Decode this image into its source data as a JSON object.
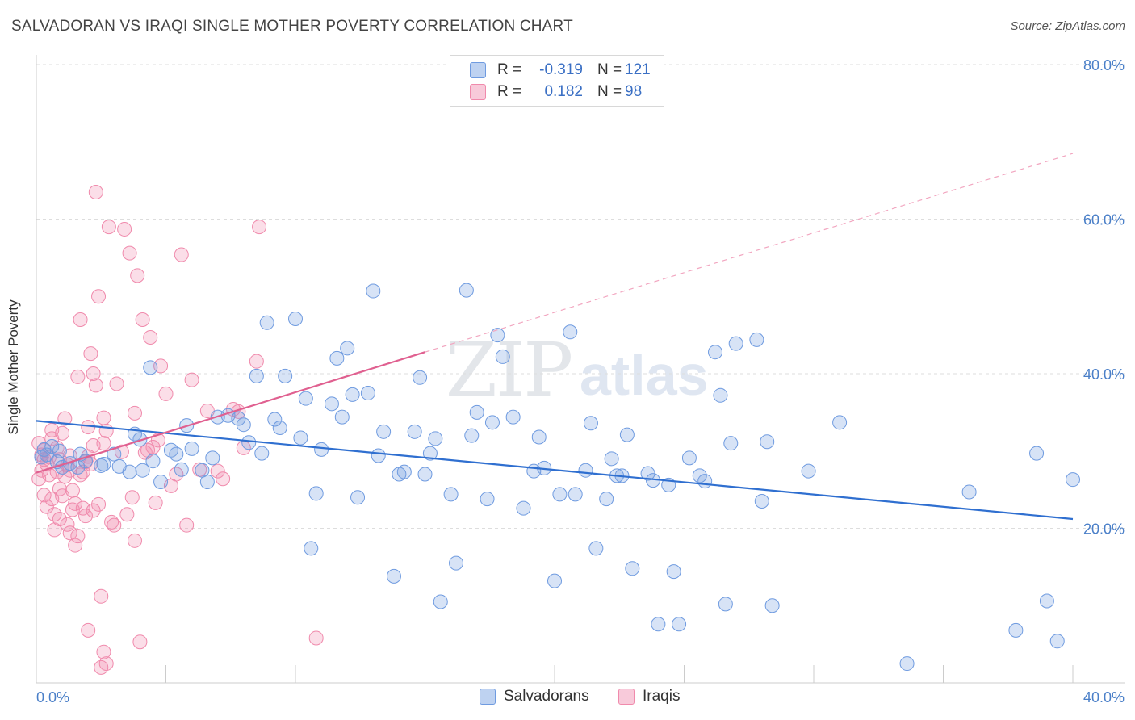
{
  "header": {
    "title": "SALVADORAN VS IRAQI SINGLE MOTHER POVERTY CORRELATION CHART",
    "source": "Source: ZipAtlas.com"
  },
  "watermark": {
    "zip": "ZIP",
    "atlas": "atlas"
  },
  "legend": {
    "rows": [
      {
        "r_label": "R =",
        "r_value": "-0.319",
        "n_label": "N =",
        "n_value": "121",
        "color": "#6f9be0"
      },
      {
        "r_label": "R =",
        "r_value": "0.182",
        "n_label": "N =",
        "n_value": "98",
        "color": "#f08aac"
      }
    ]
  },
  "bottom_legend": [
    {
      "label": "Salvadorans",
      "color": "#6f9be0"
    },
    {
      "label": "Iraqis",
      "color": "#f08aac"
    }
  ],
  "chart_data": {
    "type": "scatter",
    "title": "SALVADORAN VS IRAQI SINGLE MOTHER POVERTY CORRELATION CHART",
    "xlabel": "",
    "ylabel": "Single Mother Poverty",
    "xlim": [
      0,
      40
    ],
    "ylim": [
      0,
      80
    ],
    "x_tick_labels": [
      "0.0%",
      "40.0%"
    ],
    "y_ticks": [
      20,
      40,
      60,
      80
    ],
    "y_tick_labels": [
      "20.0%",
      "40.0%",
      "60.0%",
      "80.0%"
    ],
    "grid": true,
    "legend_placement": "top-center",
    "colors": {
      "salvadorans": "#6f9be0",
      "iraqis": "#f08aac",
      "salvadorans_line": "#2f6fd0",
      "iraqis_line": "#e06090"
    },
    "series": [
      {
        "name": "Salvadorans",
        "trend": {
          "x": [
            0,
            40
          ],
          "y": [
            33.9,
            21.2
          ],
          "style": "solid"
        },
        "points": [
          [
            0.3,
            30.2
          ],
          [
            0.6,
            30.6
          ],
          [
            0.9,
            30.0
          ],
          [
            0.4,
            29.5
          ],
          [
            0.8,
            28.6
          ],
          [
            1.0,
            27.9
          ],
          [
            1.3,
            28.4
          ],
          [
            1.6,
            27.9
          ],
          [
            1.7,
            29.6
          ],
          [
            1.9,
            28.7
          ],
          [
            2.5,
            28.1
          ],
          [
            3.0,
            29.6
          ],
          [
            2.6,
            28.3
          ],
          [
            3.2,
            28.0
          ],
          [
            3.6,
            27.3
          ],
          [
            4.1,
            27.5
          ],
          [
            3.8,
            32.2
          ],
          [
            4.4,
            40.8
          ],
          [
            4.0,
            31.5
          ],
          [
            4.5,
            28.7
          ],
          [
            4.8,
            26.0
          ],
          [
            5.2,
            30.1
          ],
          [
            5.4,
            29.6
          ],
          [
            5.6,
            27.6
          ],
          [
            5.8,
            33.3
          ],
          [
            6.0,
            30.3
          ],
          [
            6.4,
            27.5
          ],
          [
            6.6,
            26.0
          ],
          [
            6.8,
            29.1
          ],
          [
            7.0,
            34.4
          ],
          [
            7.4,
            34.6
          ],
          [
            7.8,
            34.2
          ],
          [
            8.0,
            33.4
          ],
          [
            8.2,
            31.1
          ],
          [
            8.5,
            39.7
          ],
          [
            8.7,
            29.7
          ],
          [
            8.9,
            46.6
          ],
          [
            9.2,
            34.1
          ],
          [
            9.4,
            33.0
          ],
          [
            9.6,
            39.7
          ],
          [
            10.0,
            47.1
          ],
          [
            10.2,
            31.7
          ],
          [
            10.4,
            36.8
          ],
          [
            10.8,
            24.5
          ],
          [
            10.6,
            17.4
          ],
          [
            11.0,
            30.2
          ],
          [
            11.4,
            36.1
          ],
          [
            11.8,
            34.4
          ],
          [
            11.6,
            42.0
          ],
          [
            12.0,
            43.3
          ],
          [
            12.2,
            37.3
          ],
          [
            12.4,
            24.0
          ],
          [
            12.8,
            37.5
          ],
          [
            13.2,
            29.4
          ],
          [
            13.4,
            32.5
          ],
          [
            13.0,
            50.7
          ],
          [
            13.8,
            13.8
          ],
          [
            14.0,
            27.0
          ],
          [
            14.2,
            27.3
          ],
          [
            14.6,
            32.5
          ],
          [
            14.8,
            39.5
          ],
          [
            15.0,
            27.0
          ],
          [
            15.2,
            29.7
          ],
          [
            15.4,
            31.6
          ],
          [
            15.6,
            10.5
          ],
          [
            16.0,
            24.4
          ],
          [
            16.2,
            15.5
          ],
          [
            16.6,
            50.8
          ],
          [
            16.8,
            32.0
          ],
          [
            17.0,
            35.0
          ],
          [
            17.4,
            23.8
          ],
          [
            17.6,
            33.7
          ],
          [
            17.8,
            45.0
          ],
          [
            18.0,
            42.2
          ],
          [
            18.4,
            34.4
          ],
          [
            18.8,
            22.6
          ],
          [
            19.2,
            27.4
          ],
          [
            19.4,
            31.8
          ],
          [
            19.6,
            27.8
          ],
          [
            20.0,
            13.2
          ],
          [
            20.2,
            24.4
          ],
          [
            20.6,
            45.4
          ],
          [
            20.8,
            24.4
          ],
          [
            21.2,
            27.5
          ],
          [
            21.4,
            33.6
          ],
          [
            21.6,
            17.4
          ],
          [
            22.0,
            23.8
          ],
          [
            22.2,
            29.0
          ],
          [
            22.6,
            26.8
          ],
          [
            22.8,
            32.1
          ],
          [
            22.4,
            26.8
          ],
          [
            23.0,
            14.8
          ],
          [
            23.6,
            27.1
          ],
          [
            23.8,
            26.2
          ],
          [
            24.0,
            7.6
          ],
          [
            24.4,
            25.6
          ],
          [
            24.6,
            14.4
          ],
          [
            24.8,
            7.6
          ],
          [
            25.2,
            29.1
          ],
          [
            25.6,
            26.8
          ],
          [
            25.8,
            26.1
          ],
          [
            26.2,
            42.8
          ],
          [
            26.4,
            37.2
          ],
          [
            26.6,
            10.2
          ],
          [
            26.8,
            31.0
          ],
          [
            27.0,
            43.9
          ],
          [
            27.8,
            44.4
          ],
          [
            28.0,
            23.5
          ],
          [
            28.2,
            31.2
          ],
          [
            28.4,
            10.0
          ],
          [
            29.8,
            27.4
          ],
          [
            31.0,
            33.7
          ],
          [
            33.6,
            2.5
          ],
          [
            36.0,
            24.7
          ],
          [
            37.8,
            6.8
          ],
          [
            38.6,
            29.7
          ],
          [
            39.4,
            5.4
          ],
          [
            40.0,
            26.3
          ],
          [
            39.0,
            10.6
          ],
          [
            41.0,
            9.0
          ],
          [
            0.2,
            29.2
          ]
        ]
      },
      {
        "name": "Iraqis",
        "trend": {
          "x": [
            0,
            15
          ],
          "y": [
            27.2,
            42.8
          ],
          "style": "solid",
          "extension_x": [
            15,
            40
          ],
          "extension_y": [
            42.8,
            68.5
          ],
          "extension_style": "dashed"
        },
        "points": [
          [
            0.1,
            31.0
          ],
          [
            0.2,
            29.5
          ],
          [
            0.3,
            28.9
          ],
          [
            0.4,
            28.3
          ],
          [
            0.2,
            27.5
          ],
          [
            0.5,
            26.9
          ],
          [
            0.3,
            24.3
          ],
          [
            0.6,
            23.8
          ],
          [
            0.4,
            22.8
          ],
          [
            0.7,
            21.8
          ],
          [
            0.5,
            29.2
          ],
          [
            0.8,
            30.4
          ],
          [
            0.9,
            28.9
          ],
          [
            0.6,
            32.7
          ],
          [
            1.0,
            32.3
          ],
          [
            1.1,
            34.2
          ],
          [
            1.2,
            28.2
          ],
          [
            1.3,
            27.5
          ],
          [
            0.9,
            25.1
          ],
          [
            1.0,
            24.2
          ],
          [
            1.4,
            24.9
          ],
          [
            1.5,
            23.2
          ],
          [
            1.2,
            20.5
          ],
          [
            1.3,
            19.4
          ],
          [
            1.6,
            19.0
          ],
          [
            1.5,
            17.8
          ],
          [
            1.7,
            26.9
          ],
          [
            1.8,
            27.3
          ],
          [
            1.9,
            28.6
          ],
          [
            2.0,
            29.3
          ],
          [
            2.1,
            28.3
          ],
          [
            1.6,
            39.6
          ],
          [
            1.7,
            47.0
          ],
          [
            2.1,
            42.6
          ],
          [
            2.2,
            40.0
          ],
          [
            2.3,
            38.5
          ],
          [
            2.2,
            22.3
          ],
          [
            2.4,
            23.1
          ],
          [
            2.0,
            6.8
          ],
          [
            2.5,
            11.2
          ],
          [
            2.6,
            31.0
          ],
          [
            2.7,
            32.6
          ],
          [
            2.8,
            59.0
          ],
          [
            2.3,
            63.5
          ],
          [
            2.4,
            50.0
          ],
          [
            2.6,
            4.0
          ],
          [
            2.5,
            2.0
          ],
          [
            2.7,
            2.5
          ],
          [
            2.9,
            20.8
          ],
          [
            3.0,
            20.4
          ],
          [
            3.1,
            38.7
          ],
          [
            3.4,
            58.7
          ],
          [
            3.5,
            21.8
          ],
          [
            3.6,
            55.6
          ],
          [
            3.7,
            24.0
          ],
          [
            3.8,
            18.4
          ],
          [
            3.9,
            52.7
          ],
          [
            4.0,
            5.3
          ],
          [
            4.1,
            47.0
          ],
          [
            4.2,
            29.8
          ],
          [
            4.3,
            30.1
          ],
          [
            4.4,
            44.7
          ],
          [
            4.5,
            30.5
          ],
          [
            4.6,
            23.3
          ],
          [
            4.7,
            31.4
          ],
          [
            4.8,
            41.0
          ],
          [
            5.0,
            37.4
          ],
          [
            5.2,
            25.5
          ],
          [
            5.4,
            27.0
          ],
          [
            5.6,
            55.4
          ],
          [
            5.8,
            20.4
          ],
          [
            6.0,
            39.2
          ],
          [
            6.3,
            27.6
          ],
          [
            6.6,
            35.2
          ],
          [
            7.0,
            27.4
          ],
          [
            7.2,
            26.4
          ],
          [
            7.6,
            35.4
          ],
          [
            7.8,
            35.1
          ],
          [
            8.0,
            30.4
          ],
          [
            8.5,
            41.6
          ],
          [
            8.6,
            59.0
          ],
          [
            10.8,
            5.8
          ],
          [
            0.3,
            30.1
          ],
          [
            0.6,
            31.6
          ],
          [
            0.8,
            27.3
          ],
          [
            1.1,
            26.7
          ],
          [
            1.4,
            22.4
          ],
          [
            0.1,
            26.4
          ],
          [
            0.9,
            21.2
          ],
          [
            1.3,
            29.4
          ],
          [
            1.8,
            22.6
          ],
          [
            2.0,
            33.1
          ],
          [
            2.2,
            30.7
          ],
          [
            2.6,
            34.3
          ],
          [
            3.3,
            29.9
          ],
          [
            3.8,
            34.9
          ],
          [
            0.7,
            19.8
          ],
          [
            1.9,
            21.6
          ]
        ]
      }
    ]
  }
}
